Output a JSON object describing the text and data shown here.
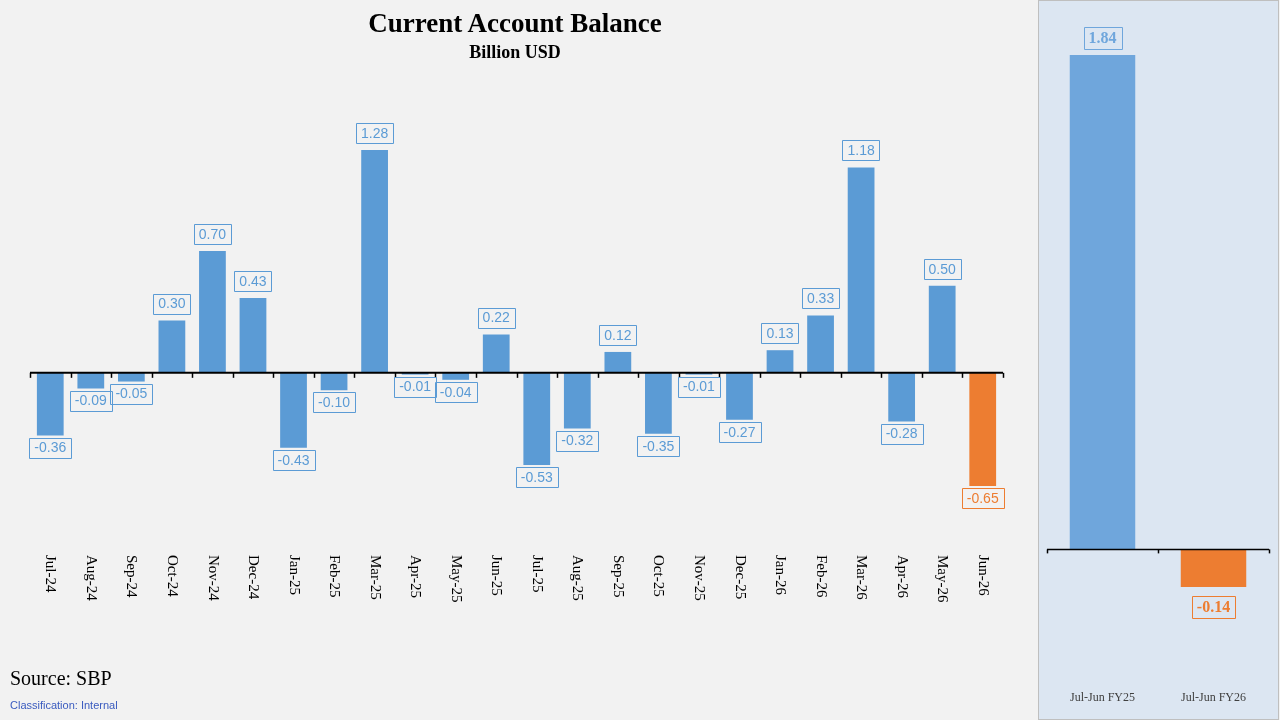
{
  "chart_data": [
    {
      "type": "bar",
      "title": "Current Account Balance",
      "subtitle": "Billion USD",
      "categories": [
        "Jul-24",
        "Aug-24",
        "Sep-24",
        "Oct-24",
        "Nov-24",
        "Dec-24",
        "Jan-25",
        "Feb-25",
        "Mar-25",
        "Apr-25",
        "May-25",
        "Jun-25",
        "Jul-25",
        "Aug-25",
        "Sep-25",
        "Oct-25",
        "Nov-25",
        "Dec-25",
        "Jan-26",
        "Feb-26",
        "Mar-26",
        "Apr-26",
        "May-26",
        "Jun-26"
      ],
      "values": [
        -0.36,
        -0.09,
        -0.05,
        0.3,
        0.7,
        0.43,
        -0.43,
        -0.1,
        1.28,
        -0.01,
        -0.04,
        0.22,
        -0.53,
        -0.32,
        0.12,
        -0.35,
        -0.01,
        -0.27,
        0.13,
        0.33,
        1.18,
        -0.28,
        0.5,
        -0.65
      ],
      "value_labels": [
        "-0.36",
        "-0.09",
        "-0.05",
        "0.30",
        "0.70",
        "0.43",
        "-0.43",
        "-0.10",
        "1.28",
        "-0.01",
        "-0.04",
        "0.22",
        "-0.53",
        "-0.32",
        "0.12",
        "-0.35",
        "-0.01",
        "-0.27",
        "0.13",
        "0.33",
        "1.18",
        "-0.28",
        "0.50",
        "-0.65"
      ],
      "colors": [
        "#5b9bd5",
        "#5b9bd5",
        "#5b9bd5",
        "#5b9bd5",
        "#5b9bd5",
        "#5b9bd5",
        "#5b9bd5",
        "#5b9bd5",
        "#5b9bd5",
        "#5b9bd5",
        "#5b9bd5",
        "#5b9bd5",
        "#5b9bd5",
        "#5b9bd5",
        "#5b9bd5",
        "#5b9bd5",
        "#5b9bd5",
        "#5b9bd5",
        "#5b9bd5",
        "#5b9bd5",
        "#5b9bd5",
        "#5b9bd5",
        "#5b9bd5",
        "#ed7d31"
      ],
      "annotations": [
        "Source: SBP",
        "Classification: Internal"
      ]
    },
    {
      "type": "bar",
      "categories": [
        "Jul-Jun FY25",
        "Jul-Jun FY26"
      ],
      "values": [
        1.84,
        -0.14
      ],
      "value_labels": [
        "1.84",
        "-0.14"
      ],
      "colors": [
        "#6fa6dc",
        "#ed7d31"
      ]
    }
  ]
}
